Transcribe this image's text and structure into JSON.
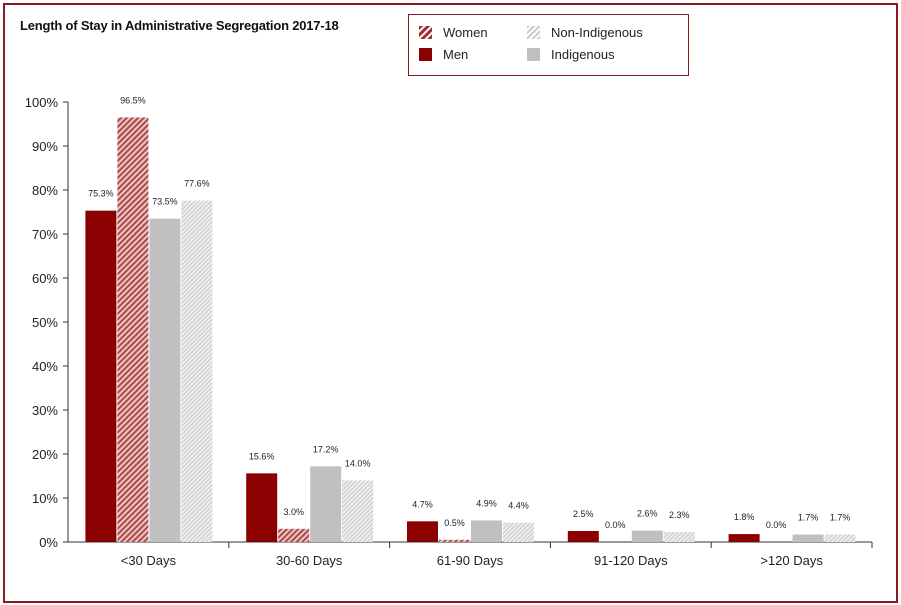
{
  "chart_data": {
    "type": "bar",
    "title": "Length of Stay in Administrative Segregation 2017-18",
    "categories": [
      "<30 Days",
      "30-60 Days",
      "61-90 Days",
      "91-120 Days",
      ">120 Days"
    ],
    "series": [
      {
        "name": "Men",
        "color": "#8b0000",
        "pattern": "solid",
        "values": [
          75.3,
          15.6,
          4.7,
          2.5,
          1.8
        ],
        "labels": [
          "75.3%",
          "15.6%",
          "4.7%",
          "2.5%",
          "1.8%"
        ]
      },
      {
        "name": "Women",
        "color": "#c07070",
        "pattern": "striped",
        "values": [
          96.5,
          3.0,
          0.5,
          0.0,
          0.0
        ],
        "labels": [
          "96.5%",
          "3.0%",
          "0.5%",
          "0.0%",
          "0.0%"
        ]
      },
      {
        "name": "Indigenous",
        "color": "#c0c0c0",
        "pattern": "solid",
        "values": [
          73.5,
          17.2,
          4.9,
          2.6,
          1.7
        ],
        "labels": [
          "73.5%",
          "17.2%",
          "4.9%",
          "2.6%",
          "1.7%"
        ]
      },
      {
        "name": "Non-Indigenous",
        "color": "#cfcfcf",
        "pattern": "striped",
        "values": [
          77.6,
          14.0,
          4.4,
          2.3,
          1.7
        ],
        "labels": [
          "77.6%",
          "14.0%",
          "4.4%",
          "2.3%",
          "1.7%"
        ]
      }
    ],
    "ylim": [
      0,
      100
    ],
    "yticks": [
      "0%",
      "10%",
      "20%",
      "30%",
      "40%",
      "50%",
      "60%",
      "70%",
      "80%",
      "90%",
      "100%"
    ],
    "xlabel": "",
    "ylabel": "",
    "legend_position": "top-right",
    "legend_order": [
      "Women",
      "Non-Indigenous",
      "Men",
      "Indigenous"
    ]
  }
}
